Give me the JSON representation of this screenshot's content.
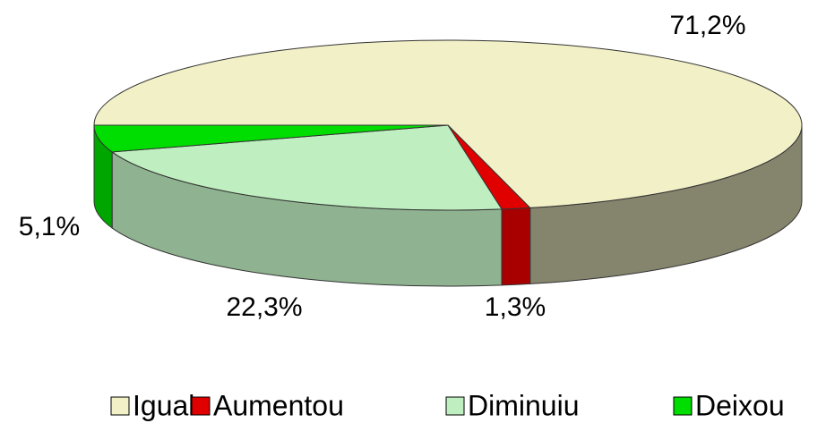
{
  "chart_data": {
    "type": "pie",
    "categories": [
      "Igual",
      "Aumentou",
      "Diminuiu",
      "Deixou"
    ],
    "values": [
      71.2,
      1.3,
      22.3,
      5.1
    ],
    "value_labels": [
      "71,2%",
      "1,3%",
      "22,3%",
      "5,1%"
    ],
    "colors": [
      "#f2f0c6",
      "#e00000",
      "#bfeec0",
      "#00dd00"
    ],
    "legend": "bottom"
  }
}
